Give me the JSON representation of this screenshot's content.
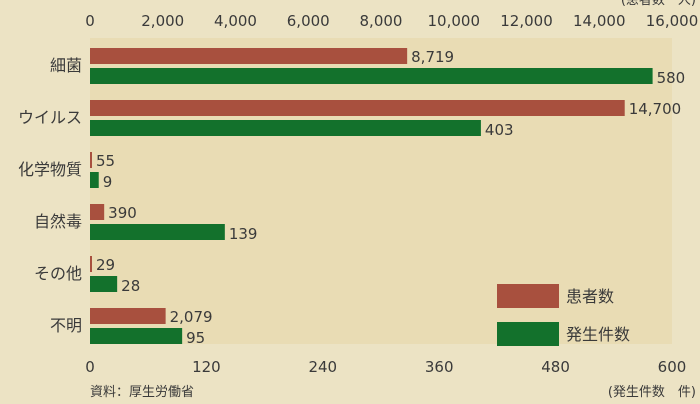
{
  "chart_data": {
    "type": "bar",
    "orientation": "horizontal",
    "categories": [
      "細菌",
      "ウイルス",
      "化学物質",
      "自然毒",
      "その他",
      "不明"
    ],
    "series": [
      {
        "name": "患者数",
        "axis": "top",
        "values": [
          8719,
          14700,
          55,
          390,
          29,
          2079
        ],
        "labels": [
          "8,719",
          "14,700",
          "55",
          "390",
          "29",
          "2,079"
        ],
        "color": "#a8503e"
      },
      {
        "name": "発生件数",
        "axis": "bottom",
        "values": [
          580,
          403,
          9,
          139,
          28,
          95
        ],
        "labels": [
          "580",
          "403",
          "9",
          "139",
          "28",
          "95"
        ],
        "color": "#13712c"
      }
    ],
    "top_axis": {
      "range": [
        0,
        16000
      ],
      "ticks": [
        0,
        2000,
        4000,
        6000,
        8000,
        10000,
        12000,
        14000,
        16000
      ],
      "tick_labels": [
        "0",
        "2,000",
        "4,000",
        "6,000",
        "8,000",
        "10,000",
        "12,000",
        "14,000",
        "16,000"
      ],
      "label": "(患者数　人)"
    },
    "bottom_axis": {
      "range": [
        0,
        600
      ],
      "ticks": [
        0,
        120,
        240,
        360,
        480,
        600
      ],
      "tick_labels": [
        "0",
        "120",
        "240",
        "360",
        "480",
        "600"
      ],
      "label": "(発生件数　件)"
    },
    "legend_position": "bottom-right",
    "source": "資料：厚生労働省"
  },
  "colors": {
    "background": "#ece3c4",
    "plot_background": "#e9dcb4",
    "patient_bar": "#a8503e",
    "incident_bar": "#13712c",
    "text": "#3a3a3a"
  }
}
